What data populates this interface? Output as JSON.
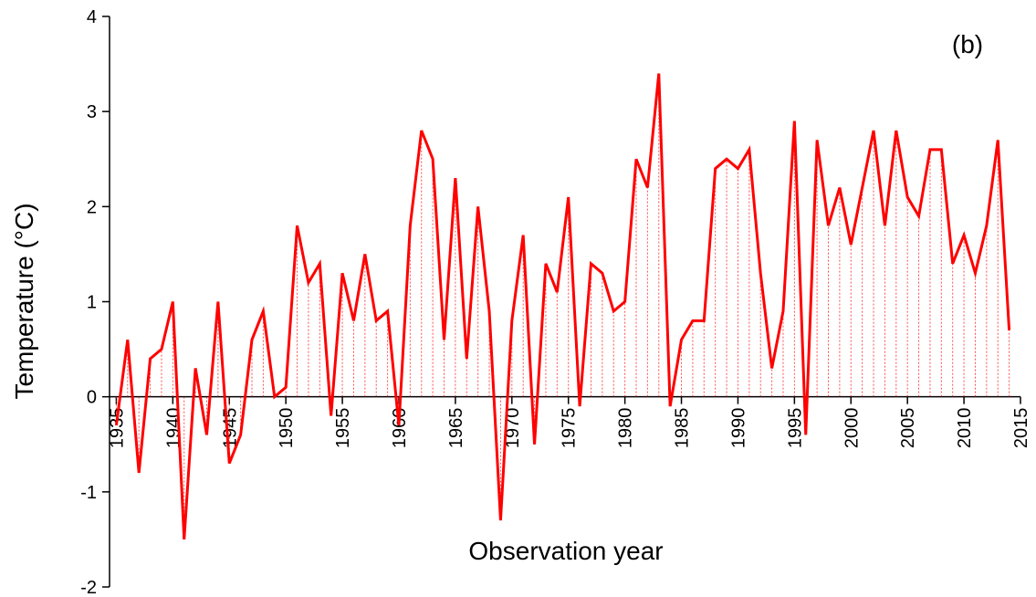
{
  "chart_data": {
    "type": "line",
    "annotation": "(b)",
    "xlabel": "Observation year",
    "ylabel": "Temperature (°C)",
    "x": [
      1935,
      1936,
      1937,
      1938,
      1939,
      1940,
      1941,
      1942,
      1943,
      1944,
      1945,
      1946,
      1947,
      1948,
      1949,
      1950,
      1951,
      1952,
      1953,
      1954,
      1955,
      1956,
      1957,
      1958,
      1959,
      1960,
      1961,
      1962,
      1963,
      1964,
      1965,
      1966,
      1967,
      1968,
      1969,
      1970,
      1971,
      1972,
      1973,
      1974,
      1975,
      1976,
      1977,
      1978,
      1979,
      1980,
      1981,
      1982,
      1983,
      1984,
      1985,
      1986,
      1987,
      1988,
      1989,
      1990,
      1991,
      1992,
      1993,
      1994,
      1995,
      1996,
      1997,
      1998,
      1999,
      2000,
      2001,
      2002,
      2003,
      2004,
      2005,
      2006,
      2007,
      2008,
      2009,
      2010,
      2011,
      2012,
      2013,
      2014
    ],
    "series": [
      {
        "color": "#ff0000",
        "values": [
          -0.3,
          0.6,
          -0.8,
          0.4,
          0.5,
          1.0,
          -1.5,
          0.3,
          -0.4,
          1.0,
          -0.7,
          -0.4,
          0.6,
          0.9,
          0.0,
          0.1,
          1.8,
          1.2,
          1.4,
          -0.2,
          1.3,
          0.8,
          1.5,
          0.8,
          0.9,
          -0.3,
          1.8,
          2.8,
          2.5,
          0.6,
          2.3,
          0.4,
          2.0,
          0.9,
          -1.3,
          0.8,
          1.7,
          -0.5,
          1.4,
          1.1,
          2.1,
          -0.1,
          1.4,
          1.3,
          0.9,
          1.0,
          2.5,
          2.2,
          3.4,
          -0.1,
          0.6,
          0.8,
          0.8,
          2.4,
          2.5,
          2.4,
          2.6,
          1.3,
          0.3,
          0.9,
          2.9,
          -0.4,
          2.7,
          1.8,
          2.2,
          1.6,
          2.2,
          2.8,
          1.8,
          2.8,
          2.1,
          1.9,
          2.6,
          2.6,
          1.4,
          1.7,
          1.3,
          1.8,
          2.7,
          0.7
        ]
      }
    ],
    "xlim": [
      1934.4,
      2015
    ],
    "xticks": [
      1935,
      1940,
      1945,
      1950,
      1955,
      1960,
      1965,
      1970,
      1975,
      1980,
      1985,
      1990,
      1995,
      2000,
      2005,
      2010,
      2015
    ],
    "ylim": [
      -2,
      4
    ],
    "yticks": [
      -2,
      -1,
      0,
      1,
      2,
      3,
      4
    ],
    "drop_lines": true
  }
}
